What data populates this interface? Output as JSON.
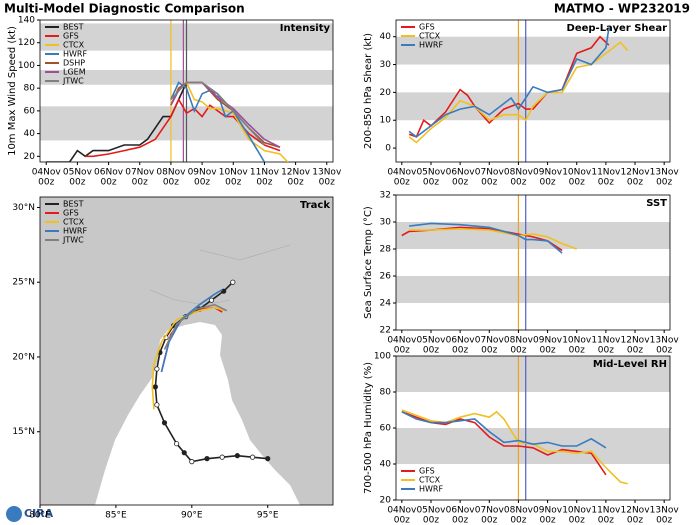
{
  "header": {
    "title": "Multi-Model Diagnostic Comparison",
    "storm": "MATMO - WP232019"
  },
  "logo": "CIRA",
  "chart_data": [
    {
      "type": "line",
      "title": "Intensity",
      "y_label": "10m Max Wind Speed (kt)",
      "legend": "upper left",
      "xlim": [
        -0.2,
        9.2
      ],
      "ylim": [
        15,
        140
      ],
      "yticks": [
        20,
        40,
        60,
        80,
        100,
        120,
        140
      ],
      "bands": [
        [
          34,
          64
        ],
        [
          83,
          96
        ],
        [
          113,
          137
        ]
      ],
      "xticks": [
        {
          "value": 0,
          "label": "04Nov"
        },
        {
          "value": 1,
          "label": "05Nov"
        },
        {
          "value": 2,
          "label": "06Nov"
        },
        {
          "value": 3,
          "label": "07Nov"
        },
        {
          "value": 4,
          "label": "08Nov"
        },
        {
          "value": 5,
          "label": "09Nov"
        },
        {
          "value": 6,
          "label": "10Nov"
        },
        {
          "value": 7,
          "label": "11Nov"
        },
        {
          "value": 8,
          "label": "12Nov"
        },
        {
          "value": 9,
          "label": "13Nov"
        }
      ],
      "xtick_sublabels": [
        "00z",
        "00z",
        "00z",
        "00z",
        "00z",
        "00z",
        "00z",
        "00z",
        "00z",
        "00z"
      ],
      "vlines": [
        {
          "value": 4.0,
          "color": "#f0c020"
        },
        {
          "value": 4.4,
          "color": "#9b4f9b"
        },
        {
          "value": 4.5,
          "color": "#555555"
        }
      ],
      "series": [
        {
          "name": "BEST",
          "color": "#222222",
          "x": [
            0,
            0.75,
            1,
            1.25,
            1.5,
            2,
            2.5,
            3,
            3.25,
            3.5,
            3.75,
            4,
            4.25,
            4.5
          ],
          "values": [
            15,
            15,
            25,
            20,
            25,
            25,
            30,
            30,
            35,
            45,
            55,
            55,
            70,
            85
          ]
        },
        {
          "name": "GFS",
          "color": "#e41a1c",
          "x": [
            1.25,
            1.5,
            2,
            2.5,
            3,
            3.5,
            3.75,
            4,
            4.25,
            4.5,
            4.75,
            5,
            5.25,
            5.5,
            5.75,
            6,
            6.5,
            7,
            7.5
          ],
          "values": [
            20,
            20,
            22,
            25,
            28,
            35,
            45,
            55,
            70,
            58,
            62,
            55,
            65,
            60,
            55,
            55,
            40,
            30,
            25
          ]
        },
        {
          "name": "CTCX",
          "color": "#f0c020",
          "x": [
            4,
            4.25,
            4.5,
            4.75,
            5,
            5.25,
            5.5,
            5.75,
            6,
            6.5,
            7,
            7.5,
            7.75
          ],
          "values": [
            65,
            80,
            85,
            70,
            68,
            62,
            62,
            60,
            58,
            35,
            25,
            22,
            15
          ]
        },
        {
          "name": "HWRF",
          "color": "#3a7bbf",
          "x": [
            4,
            4.25,
            4.5,
            4.75,
            5,
            5.25,
            5.5,
            5.75,
            6,
            6.5,
            7
          ],
          "values": [
            70,
            85,
            80,
            60,
            75,
            78,
            75,
            55,
            60,
            38,
            15
          ]
        },
        {
          "name": "DSHP",
          "color": "#a0522d",
          "x": [
            4,
            4.25,
            4.5,
            4.75,
            5,
            5.5,
            6,
            6.5,
            7,
            7.5
          ],
          "values": [
            65,
            80,
            85,
            85,
            85,
            70,
            60,
            45,
            32,
            28
          ]
        },
        {
          "name": "LGEM",
          "color": "#9b4f9b",
          "x": [
            4,
            4.25,
            4.5,
            4.75,
            5,
            5.5,
            6,
            6.5,
            7,
            7.5
          ],
          "values": [
            65,
            78,
            85,
            85,
            85,
            72,
            62,
            48,
            35,
            28
          ]
        },
        {
          "name": "JTWC",
          "color": "#808080",
          "x": [
            4,
            4.5,
            5,
            5.5,
            6,
            6.5,
            7
          ],
          "values": [
            70,
            85,
            85,
            75,
            60,
            45,
            30
          ]
        }
      ]
    },
    {
      "type": "line",
      "title": "Deep-Layer Shear",
      "y_label": "200-850 hPa Shear (kt)",
      "legend": "upper left",
      "xlim": [
        -0.2,
        9.2
      ],
      "ylim": [
        -5,
        46
      ],
      "yticks": [
        0,
        10,
        20,
        30,
        40
      ],
      "bands": [
        [
          10,
          20
        ],
        [
          30,
          40
        ]
      ],
      "xticks": [
        {
          "value": 0,
          "label": "04Nov"
        },
        {
          "value": 1,
          "label": "05Nov"
        },
        {
          "value": 2,
          "label": "06Nov"
        },
        {
          "value": 3,
          "label": "07Nov"
        },
        {
          "value": 4,
          "label": "08Nov"
        },
        {
          "value": 5,
          "label": "09Nov"
        },
        {
          "value": 6,
          "label": "10Nov"
        },
        {
          "value": 7,
          "label": "11Nov"
        },
        {
          "value": 8,
          "label": "12Nov"
        },
        {
          "value": 9,
          "label": "13Nov"
        }
      ],
      "xtick_sublabels": [
        "00z",
        "00z",
        "00z",
        "00z",
        "00z",
        "00z",
        "00z",
        "00z",
        "00z",
        "00z"
      ],
      "vlines": [
        {
          "value": 4.0,
          "color": "#f0a020"
        },
        {
          "value": 4.25,
          "color": "#5060c0"
        }
      ],
      "series": [
        {
          "name": "GFS",
          "color": "#e41a1c",
          "x": [
            0.25,
            0.5,
            0.75,
            1,
            1.5,
            2,
            2.25,
            2.5,
            3,
            3.5,
            4,
            4.25,
            4.5,
            5,
            5.5,
            6,
            6.5,
            6.8,
            7.1
          ],
          "values": [
            5,
            4,
            10,
            8,
            13,
            21,
            19,
            15,
            9,
            14,
            16,
            14,
            14,
            20,
            21,
            34,
            36,
            40,
            37
          ]
        },
        {
          "name": "CTCX",
          "color": "#f0c020",
          "x": [
            0.25,
            0.5,
            1,
            1.5,
            2,
            2.5,
            3,
            3.5,
            4,
            4.25,
            4.5,
            5,
            5.5,
            6,
            6.5,
            7,
            7.5,
            7.75
          ],
          "values": [
            4,
            2,
            7,
            11,
            17,
            15,
            10,
            12,
            12,
            10,
            15,
            20,
            20,
            29,
            30,
            34,
            38,
            35
          ]
        },
        {
          "name": "HWRF",
          "color": "#3a7bbf",
          "x": [
            0.25,
            0.5,
            1,
            1.5,
            2,
            2.5,
            3,
            3.5,
            3.75,
            4,
            4.25,
            4.5,
            5,
            5.5,
            6,
            6.5,
            7,
            7.1
          ],
          "values": [
            6,
            4,
            8,
            12,
            14,
            15,
            12,
            16,
            18,
            14,
            18,
            22,
            20,
            21,
            32,
            30,
            36,
            43
          ]
        }
      ]
    },
    {
      "type": "map",
      "title": "Track",
      "legend": "upper left",
      "xlim": [
        80,
        99.3
      ],
      "ylim": [
        10.1,
        30.7
      ],
      "xticks": [
        {
          "value": 80,
          "label": "80°E"
        },
        {
          "value": 85,
          "label": "85°E"
        },
        {
          "value": 90,
          "label": "90°E"
        },
        {
          "value": 95,
          "label": "95°E"
        }
      ],
      "yticks": [
        {
          "value": 15,
          "label": "15°N"
        },
        {
          "value": 20,
          "label": "20°N"
        },
        {
          "value": 25,
          "label": "25°N"
        },
        {
          "value": 30,
          "label": "30°N"
        }
      ],
      "series": [
        {
          "name": "BEST",
          "color": "#222222",
          "x": [
            95,
            94,
            93,
            92,
            91,
            90,
            89.5,
            89,
            88.2,
            87.7,
            87.6,
            87.7,
            87.9,
            88.3,
            88.8,
            89.6,
            90.5,
            91.3,
            92.1,
            92.7
          ],
          "values": [
            13.2,
            13.3,
            13.4,
            13.3,
            13.2,
            13.0,
            13.6,
            14.2,
            15.6,
            16.8,
            18.0,
            19.2,
            20.3,
            21.3,
            22.1,
            22.7,
            23.2,
            23.8,
            24.4,
            25.0
          ]
        },
        {
          "name": "GFS",
          "color": "#e41a1c",
          "x": [
            88.0,
            88.6,
            89.5,
            90.7,
            91.5,
            92.0
          ],
          "values": [
            19.0,
            21.5,
            22.7,
            23.2,
            23.3,
            23.0
          ]
        },
        {
          "name": "CTCX",
          "color": "#f0c020",
          "x": [
            87.5,
            87.4,
            87.5,
            88,
            89,
            90.5,
            91.5,
            92.2
          ],
          "values": [
            16.5,
            18,
            19.5,
            21,
            22.5,
            23.1,
            23.3,
            23.1
          ]
        },
        {
          "name": "HWRF",
          "color": "#3a7bbf",
          "x": [
            88.0,
            88.5,
            89.3,
            90.5,
            91.5,
            92.0
          ],
          "values": [
            19.0,
            21,
            22.5,
            23.5,
            24.2,
            24.5
          ]
        },
        {
          "name": "JTWC",
          "color": "#808080",
          "x": [
            88.2,
            89,
            90.3,
            91.5,
            92.3
          ],
          "values": [
            20.5,
            22.2,
            23.2,
            23.5,
            23.1
          ]
        }
      ]
    },
    {
      "type": "line",
      "title": "SST",
      "y_label": "Sea Surface Temp (°C)",
      "xlim": [
        -0.2,
        9.2
      ],
      "ylim": [
        22,
        32
      ],
      "yticks": [
        22,
        24,
        26,
        28,
        30,
        32
      ],
      "bands": [
        [
          24,
          26
        ],
        [
          28,
          30
        ]
      ],
      "xticks": [
        {
          "value": 0,
          "label": "04Nov"
        },
        {
          "value": 1,
          "label": "05Nov"
        },
        {
          "value": 2,
          "label": "06Nov"
        },
        {
          "value": 3,
          "label": "07Nov"
        },
        {
          "value": 4,
          "label": "08Nov"
        },
        {
          "value": 5,
          "label": "09Nov"
        },
        {
          "value": 6,
          "label": "10Nov"
        },
        {
          "value": 7,
          "label": "11Nov"
        },
        {
          "value": 8,
          "label": "12Nov"
        },
        {
          "value": 9,
          "label": "13Nov"
        }
      ],
      "xtick_sublabels": [
        "00z",
        "00z",
        "00z",
        "00z",
        "00z",
        "00z",
        "00z",
        "00z",
        "00z",
        "00z"
      ],
      "vlines": [
        {
          "value": 4.0,
          "color": "#f0a020"
        },
        {
          "value": 4.25,
          "color": "#5060c0"
        }
      ],
      "series": [
        {
          "name": "GFS",
          "color": "#e41a1c",
          "x": [
            0,
            0.25,
            1,
            2,
            3,
            4,
            4.5,
            5,
            5.5
          ],
          "values": [
            29,
            29.3,
            29.4,
            29.6,
            29.5,
            29.1,
            28.9,
            28.6,
            27.9
          ]
        },
        {
          "name": "CTCX",
          "color": "#f0c020",
          "x": [
            0.25,
            1,
            2,
            3,
            4,
            4.5,
            5,
            5.5,
            6
          ],
          "values": [
            29.4,
            29.4,
            29.5,
            29.4,
            29.0,
            29.1,
            28.9,
            28.4,
            28.0
          ]
        },
        {
          "name": "HWRF",
          "color": "#3a7bbf",
          "x": [
            0.25,
            1,
            2,
            3,
            4,
            4.25,
            4.5,
            5,
            5.5
          ],
          "values": [
            29.7,
            29.9,
            29.8,
            29.6,
            29.0,
            28.7,
            28.7,
            28.6,
            27.7
          ]
        }
      ]
    },
    {
      "type": "line",
      "title": "Mid-Level RH",
      "y_label": "700-500 hPa Humidity (%)",
      "legend": "lower left",
      "xlim": [
        -0.2,
        9.2
      ],
      "ylim": [
        20,
        100
      ],
      "yticks": [
        20,
        40,
        60,
        80,
        100
      ],
      "bands": [
        [
          40,
          60
        ],
        [
          80,
          100
        ]
      ],
      "xticks": [
        {
          "value": 0,
          "label": "04Nov"
        },
        {
          "value": 1,
          "label": "05Nov"
        },
        {
          "value": 2,
          "label": "06Nov"
        },
        {
          "value": 3,
          "label": "07Nov"
        },
        {
          "value": 4,
          "label": "08Nov"
        },
        {
          "value": 5,
          "label": "09Nov"
        },
        {
          "value": 6,
          "label": "10Nov"
        },
        {
          "value": 7,
          "label": "11Nov"
        },
        {
          "value": 8,
          "label": "12Nov"
        },
        {
          "value": 9,
          "label": "13Nov"
        }
      ],
      "xtick_sublabels": [
        "00z",
        "00z",
        "00z",
        "00z",
        "00z",
        "00z",
        "00z",
        "00z",
        "00z",
        "00z"
      ],
      "vlines": [
        {
          "value": 4.0,
          "color": "#f0a020"
        },
        {
          "value": 4.25,
          "color": "#5060c0"
        }
      ],
      "series": [
        {
          "name": "GFS",
          "color": "#e41a1c",
          "x": [
            0,
            0.5,
            1,
            1.5,
            2,
            2.5,
            3,
            3.5,
            4,
            4.5,
            5,
            5.5,
            6,
            6.5,
            7
          ],
          "values": [
            69,
            66,
            63,
            62,
            65,
            63,
            55,
            50,
            50,
            49,
            45,
            48,
            47,
            46,
            34
          ]
        },
        {
          "name": "CTCX",
          "color": "#f0c020",
          "x": [
            0,
            0.5,
            1,
            1.5,
            2,
            2.5,
            3,
            3.25,
            3.5,
            4,
            4.5,
            5,
            5.5,
            6,
            6.5,
            7,
            7.5,
            7.75
          ],
          "values": [
            70,
            67,
            64,
            63,
            66,
            68,
            66,
            69,
            65,
            52,
            51,
            47,
            47,
            46,
            47,
            38,
            30,
            29
          ]
        },
        {
          "name": "HWRF",
          "color": "#3a7bbf",
          "x": [
            0,
            0.5,
            1,
            1.5,
            2,
            2.5,
            3,
            3.5,
            4,
            4.5,
            5,
            5.5,
            6,
            6.5,
            7
          ],
          "values": [
            69,
            65,
            63,
            63,
            64,
            65,
            58,
            52,
            53,
            51,
            52,
            50,
            50,
            54,
            49
          ]
        }
      ]
    }
  ]
}
